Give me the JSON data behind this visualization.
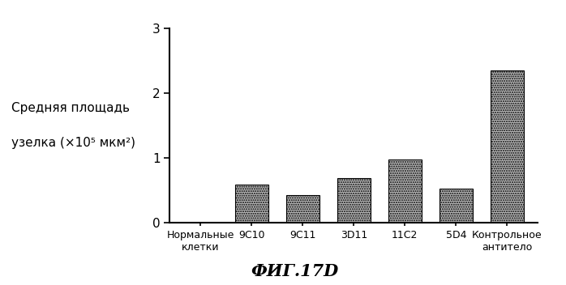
{
  "categories": [
    "Нормальные\nклетки",
    "9C10",
    "9C11",
    "3D11",
    "11C2",
    "5D4",
    "Контрольное\nантитело"
  ],
  "values": [
    0.0,
    0.58,
    0.42,
    0.68,
    0.97,
    0.52,
    2.35
  ],
  "bar_color": "#b8b8b8",
  "bar_hatch": "......",
  "ylabel_line1": "Средняя площадь",
  "ylabel_line2": "узелка (×10⁵ мкм²)",
  "ylim": [
    0,
    3
  ],
  "yticks": [
    0,
    1,
    2,
    3
  ],
  "caption": "ФИГ.17D",
  "background_color": "#ffffff",
  "bar_edgecolor": "#000000",
  "spine_linewidth": 1.5,
  "tick_fontsize": 11,
  "xlabel_fontsize": 9,
  "ylabel_fontsize": 11,
  "caption_fontsize": 15
}
